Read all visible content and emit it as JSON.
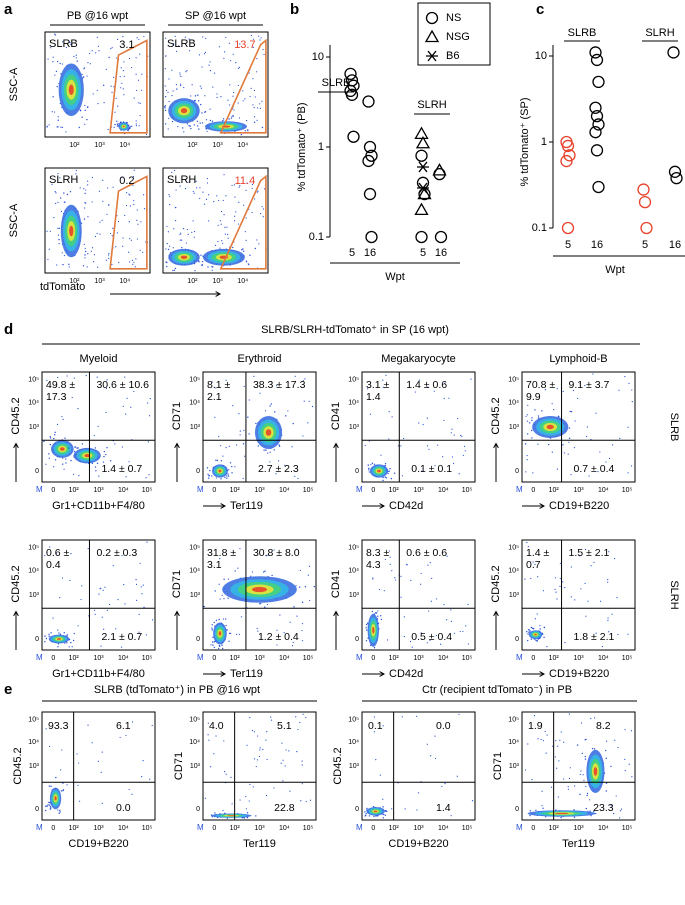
{
  "figure_labels": [
    "a",
    "b",
    "c",
    "d",
    "e"
  ],
  "flow_ticks": [
    "0",
    "10²",
    "10³",
    "10⁴",
    "10⁵"
  ],
  "flow_marker": "M",
  "panel_a": {
    "headers": [
      "PB @16 wpt",
      "SP @16 wpt"
    ],
    "y_label": "SSC-A",
    "x_label": "tdTomato",
    "plots": [
      {
        "sample": "SLRB",
        "value": "3.1"
      },
      {
        "sample": "SLRB",
        "value": "13.7",
        "color": "#e8412c"
      },
      {
        "sample": "SLRH",
        "value": "0.2"
      },
      {
        "sample": "SLRH",
        "value": "11.4",
        "color": "#e8412c"
      }
    ]
  },
  "chart_data": [
    {
      "type": "scatter",
      "y_label": "% tdTomato⁺ (PB)",
      "x_label": "Wpt",
      "groups": [
        "SLRB",
        "SLRH"
      ],
      "categories": [
        "5",
        "16",
        "5",
        "16"
      ],
      "log_scale": true,
      "ylim": [
        0.1,
        10
      ],
      "yticks": [
        0.1,
        1,
        10
      ],
      "series": [
        {
          "name": "NS",
          "marker": "circle",
          "color": "#000000",
          "values": [
            [
              6.5,
              5.5,
              4.8,
              4.2,
              3.8,
              1.3
            ],
            [
              3.2,
              1.0,
              0.8,
              0.7,
              0.3,
              0.1
            ],
            [
              0.8,
              0.4,
              0.3,
              0.1
            ],
            [
              0.5,
              0.1
            ]
          ]
        },
        {
          "name": "NSG",
          "marker": "triangle",
          "color": "#000000",
          "values": [
            [],
            [],
            [
              1.4,
              1.1,
              0.3,
              0.2
            ],
            [
              0.55
            ]
          ]
        },
        {
          "name": "B6",
          "marker": "star",
          "color": "#000000",
          "values": [
            [],
            [],
            [
              0.6,
              0.35
            ],
            []
          ]
        }
      ]
    },
    {
      "type": "scatter",
      "y_label": "% tdTomato⁺ (SP)",
      "x_label": "Wpt",
      "groups": [
        "SLRB",
        "SLRH"
      ],
      "categories": [
        "5",
        "16",
        "5",
        "16"
      ],
      "log_scale": true,
      "ylim": [
        0.1,
        10
      ],
      "yticks": [
        0.1,
        1,
        10
      ],
      "series": [
        {
          "marker": "circle",
          "color": "#e8412c",
          "values": [
            [
              1.0,
              0.9,
              0.7,
              0.6,
              0.1
            ],
            [],
            [
              0.28,
              0.2,
              0.1
            ],
            []
          ]
        },
        {
          "marker": "circle",
          "color": "#000000",
          "values": [
            [],
            [
              11,
              9,
              5,
              2.5,
              2.0,
              1.6,
              1.3,
              0.8,
              0.3
            ],
            [],
            [
              11,
              0.45,
              0.38
            ]
          ]
        }
      ]
    }
  ],
  "panel_d": {
    "title": "SLRB/SLRH-tdTomato⁺ in SP (16 wpt)",
    "columns": [
      {
        "name": "Myeloid",
        "y_label": "CD45.2",
        "x_label": "Gr1+CD11b+F4/80"
      },
      {
        "name": "Erythroid",
        "y_label": "CD71",
        "x_label": "Ter119"
      },
      {
        "name": "Megakaryocyte",
        "y_label": "CD41",
        "x_label": "CD42d"
      },
      {
        "name": "Lymphoid-B",
        "y_label": "CD45.2",
        "x_label": "CD19+B220"
      }
    ],
    "rows": [
      {
        "name": "SLRB",
        "plots": [
          {
            "tl": "49.8 ± 17.3",
            "tr": "30.6 ± 10.6",
            "br": "1.4 ± 0.7"
          },
          {
            "tl": "8.1 ± 2.1",
            "tr": "38.3 ± 17.3",
            "br": "2.7 ± 2.3"
          },
          {
            "tl": "3.1 ± 1.4",
            "tr": "1.4 ± 0.6",
            "br": "0.1 ± 0.1"
          },
          {
            "tl": "70.8 ± 9.9",
            "tr": "9.1 ± 3.7",
            "br": "0.7 ± 0.4"
          }
        ]
      },
      {
        "name": "SLRH",
        "plots": [
          {
            "tl": "0.6 ± 0.4",
            "tr": "0.2 ± 0.3",
            "br": "2.1 ± 0.7"
          },
          {
            "tl": "31.8 ± 3.1",
            "tr": "30.8 ± 8.0",
            "br": "1.2 ± 0.4"
          },
          {
            "tl": "8.3 ± 4.3",
            "tr": "0.6 ± 0.6",
            "br": "0.5 ± 0.4"
          },
          {
            "tl": "1.4 ± 0.7",
            "tr": "1.5 ± 2.1",
            "br": "1.8 ± 2.1"
          }
        ]
      }
    ]
  },
  "panel_e": {
    "groups": [
      {
        "title": "SLRB (tdTomato⁺) in PB @16 wpt",
        "plots": [
          {
            "y_label": "CD45.2",
            "x_label": "CD19+B220",
            "tl": "93.3",
            "tr": "6.1",
            "br": "0.0"
          },
          {
            "y_label": "CD71",
            "x_label": "Ter119",
            "tl": "4.0",
            "tr": "5.1",
            "br": "22.8"
          }
        ]
      },
      {
        "title": "Ctr (recipient tdTomato⁻) in PB",
        "plots": [
          {
            "y_label": "CD45.2",
            "x_label": "CD19+B220",
            "tl": "0.1",
            "tr": "0.0",
            "br": "1.4"
          },
          {
            "y_label": "CD71",
            "x_label": "Ter119",
            "tl": "1.9",
            "tr": "8.2",
            "br": "23.3"
          }
        ]
      }
    ]
  }
}
